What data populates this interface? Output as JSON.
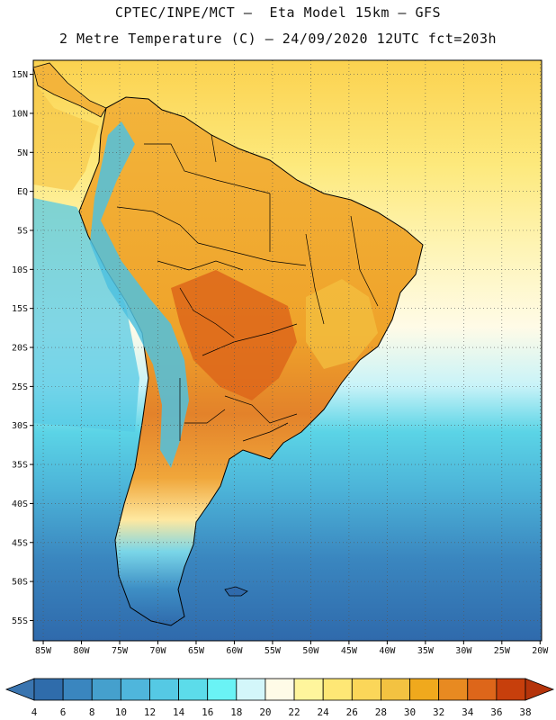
{
  "header": {
    "title_line1": "CPTEC/INPE/MCT –  Eta Model 15km – GFS",
    "title_line2": "2 Metre Temperature (C) – 24/09/2020 12UTC fct=203h"
  },
  "map": {
    "lat_labels": [
      "15N",
      "10N",
      "5N",
      "EQ",
      "5S",
      "10S",
      "15S",
      "20S",
      "25S",
      "30S",
      "35S",
      "40S",
      "45S",
      "50S",
      "55S"
    ],
    "lon_labels": [
      "85W",
      "80W",
      "75W",
      "70W",
      "65W",
      "60W",
      "55W",
      "50W",
      "45W",
      "40W",
      "35W",
      "30W",
      "25W",
      "20W"
    ],
    "lat_values": [
      15,
      10,
      5,
      0,
      -5,
      -10,
      -15,
      -20,
      -25,
      -30,
      -35,
      -40,
      -45,
      -50,
      -55
    ],
    "lon_values": [
      -85,
      -80,
      -75,
      -70,
      -65,
      -60,
      -55,
      -50,
      -45,
      -40,
      -35,
      -30,
      -25,
      -20
    ],
    "lat_range": [
      -57.6,
      16.8
    ],
    "lon_range": [
      -86.3,
      -19.8
    ],
    "grid": true
  },
  "colorbar": {
    "labels": [
      "4",
      "6",
      "8",
      "10",
      "12",
      "14",
      "16",
      "18",
      "20",
      "22",
      "24",
      "26",
      "28",
      "30",
      "32",
      "34",
      "36",
      "38"
    ],
    "colors": [
      "#2f6cab",
      "#3a86bf",
      "#45a0cd",
      "#4fb6dc",
      "#55c9e4",
      "#5cdcea",
      "#6af3f5",
      "#d3f6fa",
      "#fffbe7",
      "#fff59c",
      "#fee775",
      "#fbd659",
      "#f3c241",
      "#f0a91d",
      "#e88a21",
      "#dd661a",
      "#c73f0c"
    ],
    "under_color": "#3a75b0",
    "over_color": "#b5340b"
  },
  "colors": {
    "ocean_tropical": "#fde97c",
    "ocean_subtropical": "#fef4b4",
    "ocean_cool": "#5bd4e6",
    "ocean_cold": "#2f6aac",
    "land_hot": "#e68a22",
    "land_warm": "#f3b43b",
    "land_andes": "#4fc1df"
  }
}
